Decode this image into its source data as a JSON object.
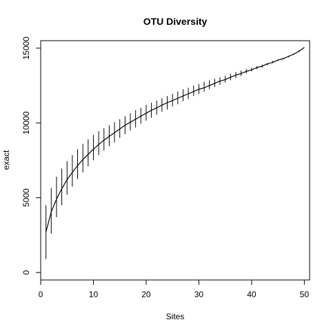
{
  "chart_data": {
    "type": "line",
    "title": "OTU Diversity",
    "xlabel": "Sites",
    "ylabel": "exact",
    "xlim": [
      0,
      51
    ],
    "ylim": [
      -500,
      15500
    ],
    "xticks": [
      0,
      10,
      20,
      30,
      40,
      50
    ],
    "yticks": [
      0,
      5000,
      10000,
      15000
    ],
    "grid": false,
    "legend": "none",
    "series": [
      {
        "x": [
          1,
          2,
          3,
          4,
          5,
          6,
          7,
          8,
          9,
          10,
          11,
          12,
          13,
          14,
          15,
          16,
          17,
          18,
          19,
          20,
          21,
          22,
          23,
          24,
          25,
          26,
          27,
          28,
          29,
          30,
          31,
          32,
          33,
          34,
          35,
          36,
          37,
          38,
          39,
          40,
          41,
          42,
          43,
          44,
          45,
          46,
          47,
          48,
          49,
          50
        ],
        "y": [
          2700,
          4050,
          4900,
          5600,
          6200,
          6700,
          7150,
          7550,
          7900,
          8250,
          8550,
          8850,
          9100,
          9350,
          9600,
          9850,
          10050,
          10250,
          10450,
          10650,
          10850,
          11000,
          11200,
          11350,
          11500,
          11650,
          11800,
          11950,
          12100,
          12250,
          12350,
          12500,
          12650,
          12800,
          12900,
          13050,
          13200,
          13300,
          13450,
          13550,
          13700,
          13800,
          13950,
          14050,
          14200,
          14300,
          14450,
          14600,
          14800,
          15050
        ],
        "y_lower": [
          900,
          2600,
          3700,
          4500,
          5200,
          5750,
          6250,
          6700,
          7100,
          7500,
          7850,
          8150,
          8450,
          8700,
          9000,
          9250,
          9500,
          9700,
          9950,
          10150,
          10350,
          10550,
          10750,
          10900,
          11100,
          11250,
          11450,
          11600,
          11800,
          11950,
          12100,
          12250,
          12400,
          12550,
          12700,
          12850,
          13000,
          13150,
          13300,
          13450,
          13600,
          13700,
          13850,
          14000,
          14150,
          14250,
          14400,
          14550,
          14750,
          15050
        ],
        "y_upper": [
          4500,
          5650,
          6400,
          6950,
          7450,
          7850,
          8250,
          8600,
          8900,
          9200,
          9450,
          9650,
          9850,
          10050,
          10250,
          10450,
          10650,
          10850,
          11000,
          11200,
          11350,
          11500,
          11650,
          11800,
          11950,
          12100,
          12250,
          12350,
          12500,
          12600,
          12750,
          12850,
          12950,
          13050,
          13150,
          13300,
          13400,
          13500,
          13600,
          13700,
          13800,
          13900,
          14000,
          14150,
          14250,
          14350,
          14500,
          14650,
          14850,
          15050
        ]
      }
    ]
  },
  "colors": {
    "line": "#000000",
    "background": "#ffffff"
  }
}
